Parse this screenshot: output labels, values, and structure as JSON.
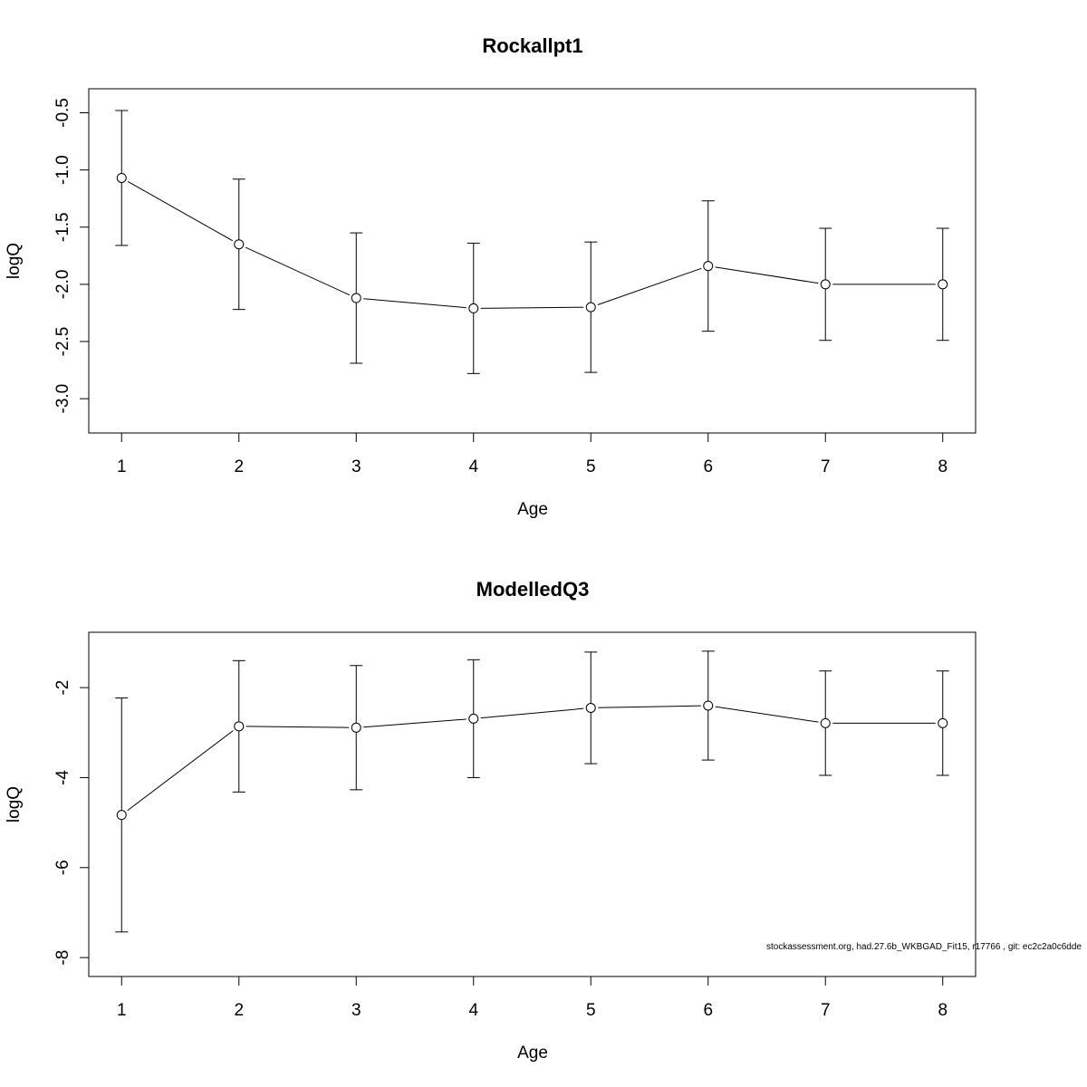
{
  "footer": "stockassessment.org, had.27.6b_WKBGAD_Fit15, r17766 , git: ec2c2a0c6dde",
  "chart_data": [
    {
      "type": "scatter",
      "title": "Rockallpt1",
      "xlabel": "Age",
      "ylabel": "logQ",
      "x": [
        1,
        2,
        3,
        4,
        5,
        6,
        7,
        8
      ],
      "xticks": [
        "1",
        "2",
        "3",
        "4",
        "5",
        "6",
        "7",
        "8"
      ],
      "xlim": [
        0.72,
        8.28
      ],
      "ylim": [
        -3.3,
        -0.29
      ],
      "yticks": [
        -0.5,
        -1.0,
        -1.5,
        -2.0,
        -2.5,
        -3.0
      ],
      "ytick_labels": [
        "-0.5",
        "-1.0",
        "-1.5",
        "-2.0",
        "-2.5",
        "-3.0"
      ],
      "estimate": [
        -1.07,
        -1.65,
        -2.12,
        -2.21,
        -2.2,
        -1.84,
        -2.0,
        -2.0
      ],
      "lower": [
        -1.66,
        -2.22,
        -2.69,
        -2.78,
        -2.77,
        -2.41,
        -2.49,
        -2.49
      ],
      "upper": [
        -0.48,
        -1.08,
        -1.55,
        -1.64,
        -1.63,
        -1.27,
        -1.51,
        -1.51
      ],
      "grid": false
    },
    {
      "type": "scatter",
      "title": "ModelledQ3",
      "xlabel": "Age",
      "ylabel": "logQ",
      "x": [
        1,
        2,
        3,
        4,
        5,
        6,
        7,
        8
      ],
      "xticks": [
        "1",
        "2",
        "3",
        "4",
        "5",
        "6",
        "7",
        "8"
      ],
      "xlim": [
        0.72,
        8.28
      ],
      "ylim": [
        -8.42,
        -0.77
      ],
      "yticks": [
        -2,
        -4,
        -6,
        -8
      ],
      "ytick_labels": [
        "-2",
        "-4",
        "-6",
        "-8"
      ],
      "estimate": [
        -4.83,
        -2.86,
        -2.89,
        -2.69,
        -2.45,
        -2.4,
        -2.79,
        -2.79
      ],
      "lower": [
        -7.43,
        -4.32,
        -4.27,
        -4.0,
        -3.69,
        -3.61,
        -3.95,
        -3.95
      ],
      "upper": [
        -2.23,
        -1.4,
        -1.51,
        -1.38,
        -1.21,
        -1.19,
        -1.63,
        -1.63
      ],
      "grid": false
    }
  ]
}
